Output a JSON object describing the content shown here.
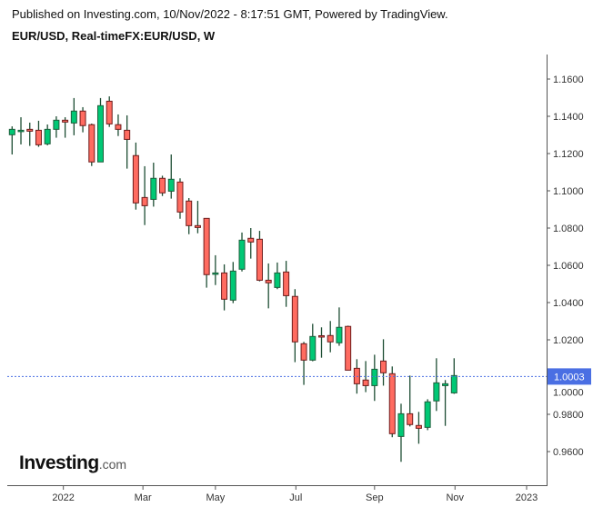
{
  "header": {
    "published": "Published on Investing.com, 10/Nov/2022 - 8:17:51 GMT, Powered by TradingView.",
    "symbol": "EUR/USD, Real-timeFX:EUR/USD, W"
  },
  "logo": {
    "brand": "Investing",
    "suffix": ".com"
  },
  "colors": {
    "up": "#00c875",
    "down": "#ff6b60",
    "up_border": "#1d5e3b",
    "down_border": "#6e1c1c",
    "wick": "#1d4d33",
    "price_line": "#4a6fe3"
  },
  "chart_data": {
    "type": "candlestick",
    "title": "EUR/USD, Real-timeFX:EUR/USD, W",
    "ylim": [
      0.9495,
      1.1665
    ],
    "yticks": [
      "1.1600",
      "1.1400",
      "1.1200",
      "1.1000",
      "1.0800",
      "1.0600",
      "1.0400",
      "1.0200",
      "1.0000",
      "0.9800",
      "0.9600"
    ],
    "ytick_values": [
      1.16,
      1.14,
      1.12,
      1.1,
      1.08,
      1.06,
      1.04,
      1.02,
      1.0,
      0.98,
      0.96
    ],
    "xticks": [
      {
        "label": "2022",
        "index": 5.8
      },
      {
        "label": "Mar",
        "index": 14.8
      },
      {
        "label": "May",
        "index": 23.0
      },
      {
        "label": "Jul",
        "index": 32.1
      },
      {
        "label": "Sep",
        "index": 41.0
      },
      {
        "label": "Nov",
        "index": 50.1
      },
      {
        "label": "2023",
        "index": 58.2
      }
    ],
    "last_price": 1.0003,
    "last_price_label": "1.0003",
    "candles": [
      [
        1.1301,
        1.1346,
        1.1195,
        1.133
      ],
      [
        1.132,
        1.1395,
        1.1249,
        1.1325
      ],
      [
        1.133,
        1.1366,
        1.1241,
        1.132
      ],
      [
        1.1325,
        1.1376,
        1.1236,
        1.1247
      ],
      [
        1.1252,
        1.1356,
        1.1244,
        1.133
      ],
      [
        1.133,
        1.14,
        1.1285,
        1.1379
      ],
      [
        1.1379,
        1.1395,
        1.1285,
        1.1369
      ],
      [
        1.1364,
        1.1498,
        1.1298,
        1.1428
      ],
      [
        1.1428,
        1.1449,
        1.1314,
        1.135
      ],
      [
        1.1355,
        1.1361,
        1.1133,
        1.1155
      ],
      [
        1.1155,
        1.1498,
        1.1155,
        1.1457
      ],
      [
        1.1481,
        1.1507,
        1.1343,
        1.1359
      ],
      [
        1.1355,
        1.141,
        1.1294,
        1.133
      ],
      [
        1.1325,
        1.1405,
        1.1119,
        1.1276
      ],
      [
        1.1189,
        1.1259,
        1.0899,
        1.0935
      ],
      [
        1.0964,
        1.1132,
        1.0816,
        1.092
      ],
      [
        1.0954,
        1.1151,
        1.0915,
        1.1067
      ],
      [
        1.1067,
        1.1081,
        1.0972,
        1.0989
      ],
      [
        1.0998,
        1.1195,
        1.0958,
        1.1062
      ],
      [
        1.1047,
        1.1067,
        1.085,
        1.0886
      ],
      [
        1.0945,
        1.0961,
        1.0767,
        1.0813
      ],
      [
        1.0813,
        1.0946,
        1.0772,
        1.0803
      ],
      [
        1.0852,
        1.0852,
        1.048,
        1.055
      ],
      [
        1.0557,
        1.0654,
        1.0494,
        1.0559
      ],
      [
        1.0559,
        1.0605,
        1.0358,
        1.0418
      ],
      [
        1.0413,
        1.0618,
        1.0397,
        1.0569
      ],
      [
        1.0579,
        1.0776,
        1.0567,
        1.0735
      ],
      [
        1.0745,
        1.08,
        1.0636,
        1.0725
      ],
      [
        1.074,
        1.0785,
        1.0514,
        1.052
      ],
      [
        1.052,
        1.061,
        1.0369,
        1.0506
      ],
      [
        1.0481,
        1.0615,
        1.0472,
        1.0559
      ],
      [
        1.0564,
        1.0624,
        1.0377,
        1.0437
      ],
      [
        1.0433,
        1.0472,
        1.008,
        1.0189
      ],
      [
        1.0179,
        1.0189,
        0.9958,
        1.0091
      ],
      [
        1.0091,
        1.0286,
        1.0085,
        1.0218
      ],
      [
        1.0222,
        1.0267,
        1.0104,
        1.022
      ],
      [
        1.0223,
        1.0301,
        1.0133,
        1.0189
      ],
      [
        1.0184,
        1.0374,
        1.0168,
        1.0267
      ],
      [
        1.0272,
        1.0276,
        1.0037,
        1.0037
      ],
      [
        1.0047,
        1.0096,
        0.9911,
        0.9964
      ],
      [
        0.9984,
        1.0086,
        0.9919,
        0.9954
      ],
      [
        0.9954,
        1.012,
        0.9872,
        1.0042
      ],
      [
        1.0086,
        1.0203,
        0.9954,
        1.0023
      ],
      [
        1.0018,
        1.0057,
        0.9677,
        0.9696
      ],
      [
        0.9681,
        0.9857,
        0.9545,
        0.9803
      ],
      [
        0.9803,
        1.0008,
        0.9735,
        0.9745
      ],
      [
        0.974,
        0.9813,
        0.9642,
        0.9725
      ],
      [
        0.973,
        0.9881,
        0.9715,
        0.9867
      ],
      [
        0.9872,
        1.0101,
        0.9818,
        0.9969
      ],
      [
        0.9954,
        0.9984,
        0.9738,
        0.9964
      ],
      [
        0.9915,
        1.0101,
        0.991,
        1.0008
      ]
    ],
    "candle_fields": [
      "open",
      "high",
      "low",
      "close"
    ]
  }
}
